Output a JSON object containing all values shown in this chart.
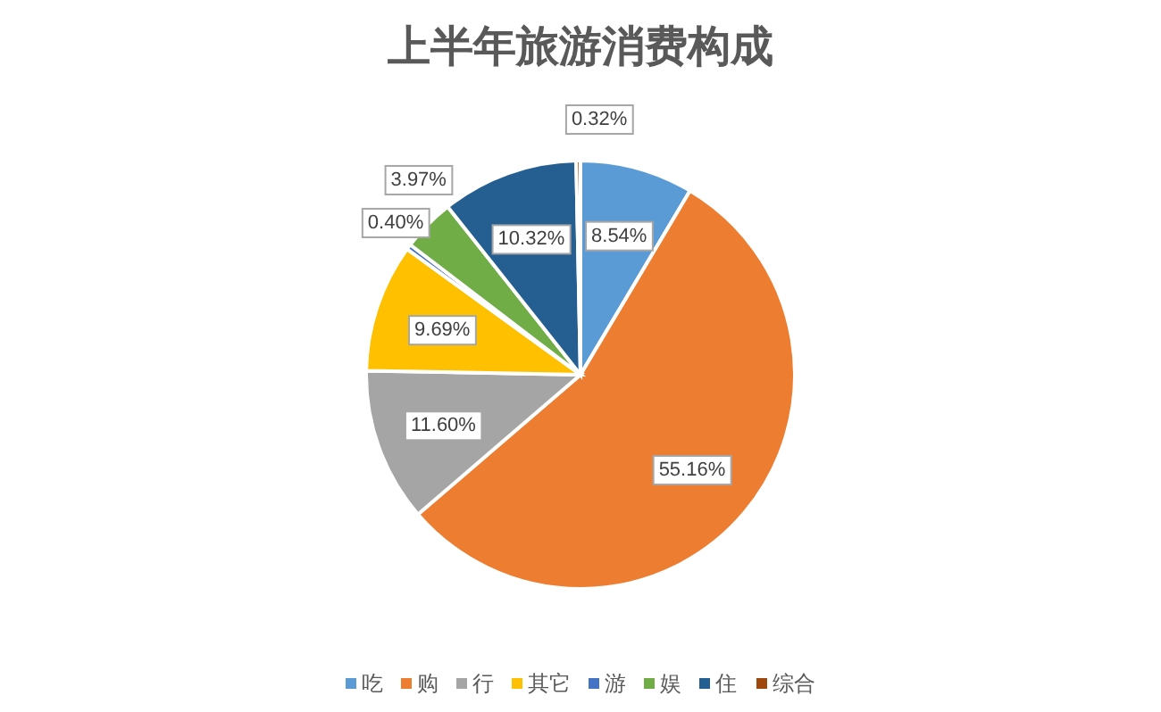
{
  "chart_data": {
    "type": "pie",
    "title": "上半年旅游消费构成",
    "categories": [
      "吃",
      "购",
      "行",
      "其它",
      "游",
      "娱",
      "住",
      "综合"
    ],
    "values": [
      8.54,
      55.16,
      11.6,
      9.69,
      0.4,
      3.97,
      10.32,
      0.32
    ],
    "value_labels": [
      "8.54%",
      "55.16%",
      "11.60%",
      "9.69%",
      "0.40%",
      "3.97%",
      "10.32%",
      "0.32%"
    ],
    "colors": [
      "#5b9bd5",
      "#ed7d31",
      "#a5a5a5",
      "#ffc000",
      "#4472c4",
      "#70ad47",
      "#255e91",
      "#9e480e"
    ],
    "legend": "bottom"
  }
}
